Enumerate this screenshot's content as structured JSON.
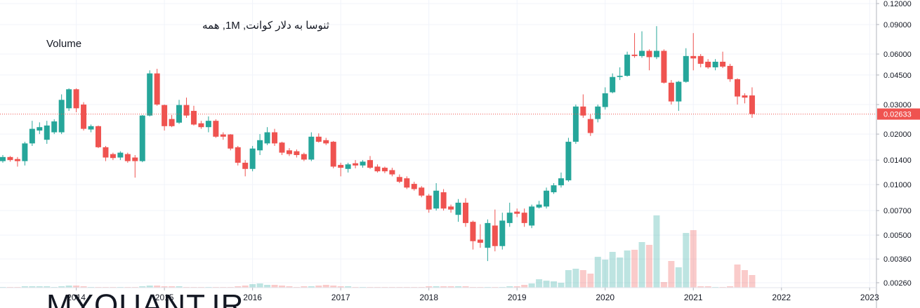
{
  "chart_data": {
    "type": "candlestick",
    "title": "ثنوسا به دلار کوانت, 1M, همه",
    "volume_label": "Volume",
    "watermark": "MYQUANT.IR",
    "log_scale": true,
    "grid": true,
    "up_color": "#26a69a",
    "down_color": "#ef5350",
    "x": [
      "2013-03",
      "2013-04",
      "2013-05",
      "2013-06",
      "2013-07",
      "2013-08",
      "2013-09",
      "2013-10",
      "2013-11",
      "2013-12",
      "2014-01",
      "2014-02",
      "2014-03",
      "2014-04",
      "2014-05",
      "2014-06",
      "2014-07",
      "2014-08",
      "2014-09",
      "2014-10",
      "2014-11",
      "2014-12",
      "2015-01",
      "2015-02",
      "2015-03",
      "2015-04",
      "2015-05",
      "2015-06",
      "2015-07",
      "2015-08",
      "2015-09",
      "2015-10",
      "2015-11",
      "2015-12",
      "2016-01",
      "2016-02",
      "2016-03",
      "2016-04",
      "2016-05",
      "2016-06",
      "2016-07",
      "2016-08",
      "2016-09",
      "2016-10",
      "2016-11",
      "2016-12",
      "2017-01",
      "2017-02",
      "2017-03",
      "2017-04",
      "2017-05",
      "2017-06",
      "2017-07",
      "2017-08",
      "2017-09",
      "2017-10",
      "2017-11",
      "2017-12",
      "2018-01",
      "2018-02",
      "2018-03",
      "2018-04",
      "2018-05",
      "2018-06",
      "2018-07",
      "2018-08",
      "2018-09",
      "2018-10",
      "2018-11",
      "2018-12",
      "2019-01",
      "2019-02",
      "2019-03",
      "2019-04",
      "2019-05",
      "2019-06",
      "2019-07",
      "2019-08",
      "2019-09",
      "2019-10",
      "2019-11",
      "2019-12",
      "2020-01",
      "2020-02",
      "2020-03",
      "2020-04",
      "2020-05",
      "2020-06",
      "2020-07",
      "2020-08",
      "2020-09",
      "2020-10",
      "2020-11",
      "2020-12",
      "2021-01",
      "2021-02",
      "2021-03",
      "2021-04",
      "2021-05",
      "2021-06",
      "2021-07",
      "2021-08",
      "2021-09"
    ],
    "open": [
      0.0138,
      0.0146,
      0.0142,
      0.0138,
      0.0176,
      0.021,
      0.0185,
      0.0205,
      0.0205,
      0.0285,
      0.037,
      0.03,
      0.0213,
      0.0223,
      0.0167,
      0.0152,
      0.0145,
      0.0152,
      0.0145,
      0.0138,
      0.0258,
      0.046,
      0.0298,
      0.0246,
      0.0234,
      0.0298,
      0.0275,
      0.0232,
      0.022,
      0.024,
      0.0199,
      0.0199,
      0.0167,
      0.0135,
      0.0124,
      0.016,
      0.0176,
      0.0205,
      0.0178,
      0.016,
      0.0158,
      0.0152,
      0.0141,
      0.0193,
      0.0184,
      0.018,
      0.0131,
      0.0124,
      0.0134,
      0.013,
      0.014,
      0.0128,
      0.0126,
      0.0122,
      0.0111,
      0.0109,
      0.0101,
      0.0096,
      0.0086,
      0.0072,
      0.009,
      0.0074,
      0.0066,
      0.0078,
      0.006,
      0.0047,
      0.0042,
      0.0057,
      0.0043,
      0.0059,
      0.0069,
      0.0068,
      0.0057,
      0.0073,
      0.0074,
      0.009,
      0.0099,
      0.0106,
      0.018,
      0.0292,
      0.0246,
      0.0246,
      0.029,
      0.0355,
      0.0438,
      0.0445,
      0.0595,
      0.0584,
      0.0627,
      0.0575,
      0.0627,
      0.0405,
      0.0313,
      0.041,
      0.0584,
      0.0584,
      0.054,
      0.05,
      0.054,
      0.051,
      0.0425,
      0.034,
      0.034
    ],
    "high": [
      0.015,
      0.0148,
      0.0146,
      0.018,
      0.024,
      0.0235,
      0.024,
      0.0245,
      0.0345,
      0.0375,
      0.0375,
      0.031,
      0.0228,
      0.0225,
      0.017,
      0.0155,
      0.0158,
      0.0155,
      0.015,
      0.026,
      0.048,
      0.049,
      0.03,
      0.026,
      0.032,
      0.033,
      0.0295,
      0.024,
      0.0255,
      0.0245,
      0.0205,
      0.02,
      0.017,
      0.014,
      0.017,
      0.02,
      0.022,
      0.0215,
      0.018,
      0.0165,
      0.0162,
      0.0155,
      0.0205,
      0.0202,
      0.019,
      0.0182,
      0.0135,
      0.0135,
      0.014,
      0.014,
      0.0148,
      0.0132,
      0.0128,
      0.0126,
      0.0115,
      0.0112,
      0.0104,
      0.0098,
      0.0088,
      0.0102,
      0.0094,
      0.0076,
      0.0082,
      0.0083,
      0.0061,
      0.0058,
      0.0062,
      0.0071,
      0.0068,
      0.0078,
      0.0072,
      0.0072,
      0.0076,
      0.008,
      0.0096,
      0.0102,
      0.0118,
      0.019,
      0.03,
      0.0345,
      0.0262,
      0.03,
      0.038,
      0.046,
      0.05,
      0.062,
      0.08,
      0.082,
      0.064,
      0.088,
      0.064,
      0.042,
      0.0415,
      0.065,
      0.08,
      0.06,
      0.056,
      0.056,
      0.062,
      0.0525,
      0.043,
      0.035,
      0.038
    ],
    "low": [
      0.0135,
      0.0137,
      0.0128,
      0.013,
      0.017,
      0.02,
      0.0175,
      0.02,
      0.02,
      0.0275,
      0.027,
      0.021,
      0.0205,
      0.0165,
      0.0138,
      0.014,
      0.014,
      0.0135,
      0.011,
      0.0136,
      0.0255,
      0.0295,
      0.021,
      0.022,
      0.023,
      0.025,
      0.0225,
      0.0215,
      0.0205,
      0.019,
      0.0185,
      0.016,
      0.013,
      0.0112,
      0.012,
      0.015,
      0.0172,
      0.017,
      0.015,
      0.0148,
      0.0145,
      0.0138,
      0.0138,
      0.0178,
      0.0172,
      0.0125,
      0.0112,
      0.0118,
      0.0125,
      0.0126,
      0.0124,
      0.0118,
      0.0117,
      0.0112,
      0.0102,
      0.0094,
      0.0092,
      0.0084,
      0.0068,
      0.007,
      0.007,
      0.0068,
      0.006,
      0.0056,
      0.0041,
      0.0042,
      0.0035,
      0.004,
      0.0041,
      0.0056,
      0.0064,
      0.0056,
      0.0055,
      0.0072,
      0.0072,
      0.0088,
      0.0096,
      0.0104,
      0.0175,
      0.025,
      0.0195,
      0.0235,
      0.028,
      0.035,
      0.042,
      0.044,
      0.057,
      0.057,
      0.048,
      0.056,
      0.04,
      0.03,
      0.0275,
      0.0405,
      0.048,
      0.05,
      0.049,
      0.048,
      0.0495,
      0.041,
      0.03,
      0.0305,
      0.025
    ],
    "close": [
      0.0146,
      0.014,
      0.0138,
      0.0176,
      0.0215,
      0.022,
      0.0225,
      0.0238,
      0.032,
      0.037,
      0.0285,
      0.0215,
      0.0223,
      0.0167,
      0.0145,
      0.0144,
      0.0155,
      0.0138,
      0.0138,
      0.0258,
      0.046,
      0.03,
      0.0223,
      0.0223,
      0.0298,
      0.0258,
      0.0228,
      0.022,
      0.024,
      0.0193,
      0.0193,
      0.0164,
      0.0135,
      0.0124,
      0.0164,
      0.0184,
      0.0205,
      0.0176,
      0.0155,
      0.0152,
      0.015,
      0.0141,
      0.0193,
      0.018,
      0.0176,
      0.0128,
      0.0126,
      0.0132,
      0.013,
      0.0137,
      0.0126,
      0.012,
      0.012,
      0.0115,
      0.0104,
      0.0096,
      0.0094,
      0.0086,
      0.0071,
      0.0092,
      0.0072,
      0.0071,
      0.0078,
      0.0059,
      0.0046,
      0.0045,
      0.0059,
      0.0043,
      0.0061,
      0.0068,
      0.0067,
      0.0059,
      0.0074,
      0.0076,
      0.0092,
      0.0099,
      0.0109,
      0.018,
      0.0292,
      0.0258,
      0.0203,
      0.0292,
      0.035,
      0.0438,
      0.0445,
      0.0595,
      0.0584,
      0.0627,
      0.0575,
      0.0627,
      0.0405,
      0.0313,
      0.041,
      0.0584,
      0.0565,
      0.0525,
      0.05,
      0.054,
      0.0505,
      0.0425,
      0.0335,
      0.033,
      0.02633
    ],
    "volume": [
      1,
      1,
      1,
      2,
      2,
      2,
      2,
      1,
      2,
      3,
      3,
      2,
      1,
      1,
      1,
      1,
      1,
      1,
      1,
      2,
      3,
      3,
      2,
      2,
      2,
      1,
      1,
      1,
      1,
      1,
      1,
      1,
      2,
      3,
      5,
      6,
      4,
      4,
      3,
      2,
      1,
      2,
      2,
      3,
      4,
      3,
      2,
      2,
      1,
      1,
      1,
      1,
      1,
      1,
      1,
      1,
      1,
      1,
      2,
      2,
      2,
      2,
      2,
      2,
      1,
      1,
      1,
      1,
      1,
      2,
      2,
      4,
      6,
      12,
      10,
      9,
      7,
      25,
      27,
      25,
      20,
      44,
      40,
      51,
      43,
      53,
      54,
      65,
      61,
      103,
      8,
      38,
      29,
      78,
      82,
      2,
      2,
      1,
      1,
      2,
      33,
      25,
      18
    ],
    "ylim": [
      0.00243,
      0.126
    ],
    "yticks": [
      {
        "value": 0.12,
        "label": "0.12000"
      },
      {
        "value": 0.09,
        "label": "0.09000"
      },
      {
        "value": 0.06,
        "label": "0.06000"
      },
      {
        "value": 0.045,
        "label": "0.04500"
      },
      {
        "value": 0.03,
        "label": "0.03000"
      },
      {
        "value": 0.02,
        "label": "0.02000"
      },
      {
        "value": 0.014,
        "label": "0.01400"
      },
      {
        "value": 0.01,
        "label": "0.01000"
      },
      {
        "value": 0.007,
        "label": "0.00700"
      },
      {
        "value": 0.005,
        "label": "0.00500"
      },
      {
        "value": 0.0036,
        "label": "0.00360"
      },
      {
        "value": 0.0026,
        "label": "0.00260"
      }
    ],
    "xticks": [
      2014,
      2015,
      2016,
      2017,
      2018,
      2019,
      2020,
      2021,
      2022,
      2023
    ]
  }
}
